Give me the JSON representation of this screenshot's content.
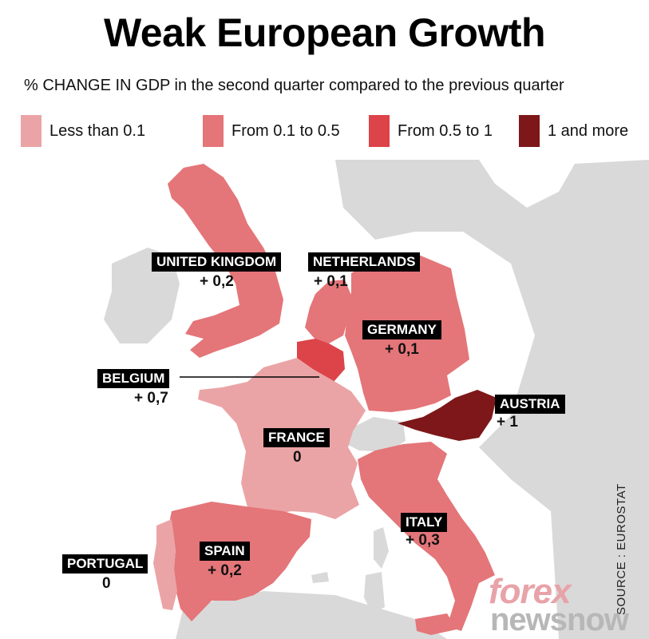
{
  "title": "Weak European Growth",
  "subtitle": "% CHANGE IN GDP in the second quarter compared to the previous quarter",
  "legend": [
    {
      "label": "Less than 0.1",
      "color": "#eba4a6"
    },
    {
      "label": "From 0.1 to 0.5",
      "color": "#e47579"
    },
    {
      "label": "From 0.5 to 1",
      "color": "#dc4449"
    },
    {
      "label": "1 and more",
      "color": "#7d1719"
    }
  ],
  "colors": {
    "background_land": "#d9d9d9",
    "sea": "#ffffff",
    "label_bg": "#000000"
  },
  "countries": {
    "uk": {
      "name": "UNITED KINGDOM",
      "value": "+ 0,2"
    },
    "netherlands": {
      "name": "NETHERLANDS",
      "value": "+ 0,1"
    },
    "germany": {
      "name": "GERMANY",
      "value": "+ 0,1"
    },
    "belgium": {
      "name": "BELGIUM",
      "value": "+ 0,7"
    },
    "austria": {
      "name": "AUSTRIA",
      "value": "+ 1"
    },
    "france": {
      "name": "FRANCE",
      "value": "0"
    },
    "italy": {
      "name": "ITALY",
      "value": "+ 0,3"
    },
    "spain": {
      "name": "SPAIN",
      "value": "+ 0,2"
    },
    "portugal": {
      "name": "PORTUGAL",
      "value": "0"
    }
  },
  "source": "SOURCE : EUROSTAT",
  "logo": {
    "top": "forex",
    "bottom": "newsnow"
  }
}
